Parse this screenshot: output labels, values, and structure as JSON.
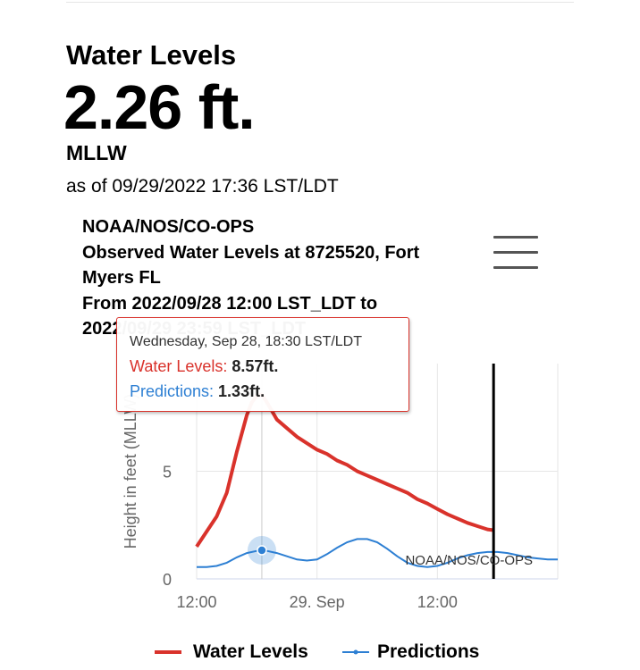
{
  "station_card": {
    "title": "Water Levels",
    "value": "2.26 ft.",
    "datum": "MLLW",
    "as_of": "as of 09/29/2022 17:36 LST/LDT"
  },
  "chart_title": {
    "line1": "NOAA/NOS/CO-OPS",
    "line2": "Observed Water Levels at 8725520, Fort",
    "line3": "Myers FL",
    "line4": "From 2022/09/28 12:00 LST_LDT to",
    "line5": "2022/09/29 23:59 LST_LDT"
  },
  "tooltip": {
    "header": "Wednesday, Sep 28, 18:30 LST/LDT",
    "water_label": "Water Levels: ",
    "water_value": "8.57ft.",
    "pred_label": "Predictions: ",
    "pred_value": "1.33ft."
  },
  "credit": "NOAA/NOS/CO-OPS",
  "legend": {
    "water_levels": "Water Levels",
    "predictions": "Predictions"
  },
  "colors": {
    "water_levels": "#d9322b",
    "predictions": "#2d7fd3",
    "now_line": "#000000"
  },
  "chart_data": {
    "type": "line",
    "ylabel": "Height in feet (MLLW)",
    "ylim": [
      0,
      10
    ],
    "yticks": [
      0,
      5
    ],
    "xlim": [
      0,
      36
    ],
    "xticks": [
      {
        "x": 0,
        "label": "12:00"
      },
      {
        "x": 12,
        "label": "29. Sep"
      },
      {
        "x": 24,
        "label": "12:00"
      }
    ],
    "x_unit": "hours after 2022-09-28 12:00",
    "now_marker_x": 29.6,
    "highlight_x": 6.5,
    "series": [
      {
        "name": "Water Levels",
        "color": "#d9322b",
        "x": [
          0,
          1,
          2,
          3,
          4,
          5,
          5.5,
          6,
          6.5,
          7,
          7.5,
          8,
          9,
          10,
          11,
          12,
          13,
          14,
          15,
          16,
          17,
          18,
          19,
          20,
          21,
          22,
          23,
          24,
          25,
          26,
          27,
          28,
          29,
          29.6
        ],
        "values": [
          1.5,
          2.2,
          2.9,
          4.0,
          5.9,
          7.6,
          8.2,
          8.5,
          8.57,
          8.2,
          7.8,
          7.4,
          7.0,
          6.6,
          6.3,
          6.0,
          5.8,
          5.5,
          5.3,
          5.0,
          4.8,
          4.6,
          4.4,
          4.2,
          4.0,
          3.7,
          3.5,
          3.25,
          3.0,
          2.8,
          2.6,
          2.45,
          2.3,
          2.26
        ]
      },
      {
        "name": "Predictions",
        "color": "#2d7fd3",
        "x": [
          0,
          1,
          2,
          3,
          4,
          5,
          6,
          6.5,
          7,
          8,
          9,
          10,
          11,
          12,
          13,
          14,
          15,
          16,
          17,
          18,
          19,
          20,
          21,
          22,
          23,
          24,
          25,
          26,
          27,
          28,
          29,
          30,
          31,
          32,
          33,
          34,
          35,
          36
        ],
        "values": [
          0.55,
          0.55,
          0.6,
          0.75,
          1.0,
          1.2,
          1.3,
          1.33,
          1.3,
          1.2,
          1.05,
          0.9,
          0.85,
          0.9,
          1.15,
          1.45,
          1.7,
          1.85,
          1.85,
          1.7,
          1.4,
          1.05,
          0.75,
          0.6,
          0.55,
          0.6,
          0.75,
          0.95,
          1.1,
          1.2,
          1.25,
          1.25,
          1.2,
          1.1,
          1.0,
          0.95,
          0.9,
          0.9
        ]
      }
    ]
  }
}
